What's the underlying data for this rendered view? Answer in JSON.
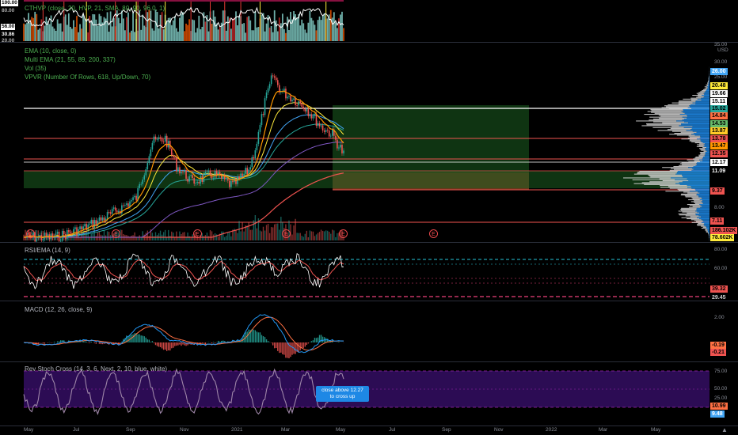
{
  "panes": {
    "cthvp": {
      "legend": "CTHVP (close, 20, HVP, 21, SMA, 80, 90, 96.0, 1)",
      "left_ticks": [
        "100.00",
        "80.00",
        "56.00",
        "30.86",
        "20.00"
      ],
      "right_ticks": []
    },
    "price": {
      "legend_lines": [
        "EMA (10, close, 0)",
        "Multi EMA (21, 55, 89, 200, 337)",
        "Vol (35)",
        "VPVR (Number Of Rows, 618, Up/Down, 70)"
      ],
      "currency": "USD",
      "axis_ticks": [
        "35.00",
        "30.00",
        "25.00",
        "8.00"
      ],
      "price_tags": [
        {
          "value": "26.00",
          "color": "#42a5f5"
        },
        {
          "value": "20.48",
          "color": "#ffeb3b"
        },
        {
          "value": "19.66",
          "color": "#ffffff"
        },
        {
          "value": "15.11",
          "color": "#ffffff"
        },
        {
          "value": "15.02",
          "color": "#26a69a"
        },
        {
          "value": "14.84",
          "color": "#ff7043"
        },
        {
          "value": "14.53",
          "color": "#66bb6a"
        },
        {
          "value": "13.87",
          "color": "#ffca28"
        },
        {
          "value": "13.78",
          "color": "#ef5350"
        },
        {
          "value": "13.47",
          "color": "#ff9800"
        },
        {
          "value": "12.35",
          "color": "#ef5350"
        },
        {
          "value": "12.17",
          "color": "#ffffff"
        },
        {
          "value": "11.09",
          "color": "#787b86"
        },
        {
          "value": "9.37",
          "color": "#ef5350"
        },
        {
          "value": "7.11",
          "color": "#ef5350"
        },
        {
          "value": "186.102K",
          "color": "#ef5350"
        },
        {
          "value": "78.602K",
          "color": "#ffeb3b"
        }
      ],
      "earnings_marker": "E"
    },
    "rsi": {
      "legend": "RSI/EMA (14, 9)",
      "axis_ticks": [
        "80.00",
        "60.00"
      ],
      "tags": [
        {
          "value": "39.32",
          "color": "#ef5350"
        },
        {
          "value": "29.45",
          "color": "#000000"
        }
      ]
    },
    "macd": {
      "legend": "MACD (12, 26, close, 9)",
      "axis_ticks": [
        "2.00",
        "0.00"
      ],
      "tags": [
        {
          "value": "-0.19",
          "color": "#ff7043"
        },
        {
          "value": "-0.21",
          "color": "#ef5350"
        }
      ]
    },
    "stoch": {
      "legend": "Rev Stoch Cross (14, 3, 6, Next, 2, 10, blue, white)",
      "axis_ticks": [
        "75.00",
        "50.00",
        "25.00"
      ],
      "tags": [
        {
          "value": "10.99",
          "color": "#ff7043"
        },
        {
          "value": "9.48",
          "color": "#42a5f5"
        }
      ],
      "callout": [
        "close above 12.27",
        "to cross up"
      ]
    }
  },
  "time_axis": [
    "May",
    "Jul",
    "Sep",
    "Nov",
    "2021",
    "Mar",
    "May",
    "Jul",
    "Sep",
    "Nov",
    "2022",
    "Mar",
    "May"
  ],
  "logo_icon": "tradingview-logo"
}
